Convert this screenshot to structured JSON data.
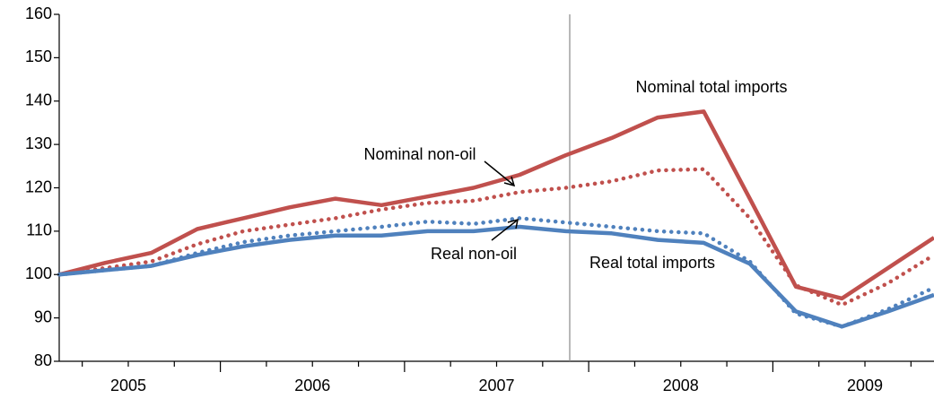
{
  "chart_data": {
    "type": "line",
    "categories": [
      null,
      "2005",
      null,
      null,
      null,
      "2006",
      null,
      null,
      null,
      "2007",
      null,
      null,
      null,
      "2008",
      null,
      null,
      null,
      "2009",
      null,
      null
    ],
    "ylim": [
      80,
      160
    ],
    "yticks": [
      80,
      90,
      100,
      110,
      120,
      130,
      140,
      150,
      160
    ],
    "grid": false,
    "series": [
      {
        "name": "Nominal total imports",
        "color": "#c0504d",
        "style": "solid",
        "values": [
          100,
          102.7,
          105,
          110.5,
          113,
          115.5,
          117.5,
          116,
          118,
          120,
          123,
          127.5,
          131.5,
          136.2,
          137.6,
          117.5,
          97.2,
          94.5,
          101.5,
          108.5
        ]
      },
      {
        "name": "Nominal non-oil",
        "color": "#c0504d",
        "style": "dotted",
        "values": [
          100,
          101.5,
          103,
          107,
          110,
          111.5,
          113,
          115,
          116.5,
          117,
          119,
          120,
          121.5,
          124,
          124.3,
          113,
          97.5,
          93,
          98,
          104.5
        ]
      },
      {
        "name": "Real non-oil",
        "color": "#4f81bd",
        "style": "dotted",
        "values": [
          100,
          101,
          102,
          105,
          107.5,
          109,
          110,
          111,
          112.2,
          111.7,
          113,
          112,
          111,
          110,
          109.5,
          103,
          91,
          88,
          92,
          97
        ]
      },
      {
        "name": "Real total imports",
        "color": "#4f81bd",
        "style": "solid",
        "values": [
          100,
          101,
          102,
          104.5,
          106.5,
          108,
          109,
          109,
          110,
          110,
          111,
          110,
          109.5,
          108,
          107.3,
          102.5,
          91.5,
          88,
          91.5,
          95.3
        ]
      }
    ]
  }
}
